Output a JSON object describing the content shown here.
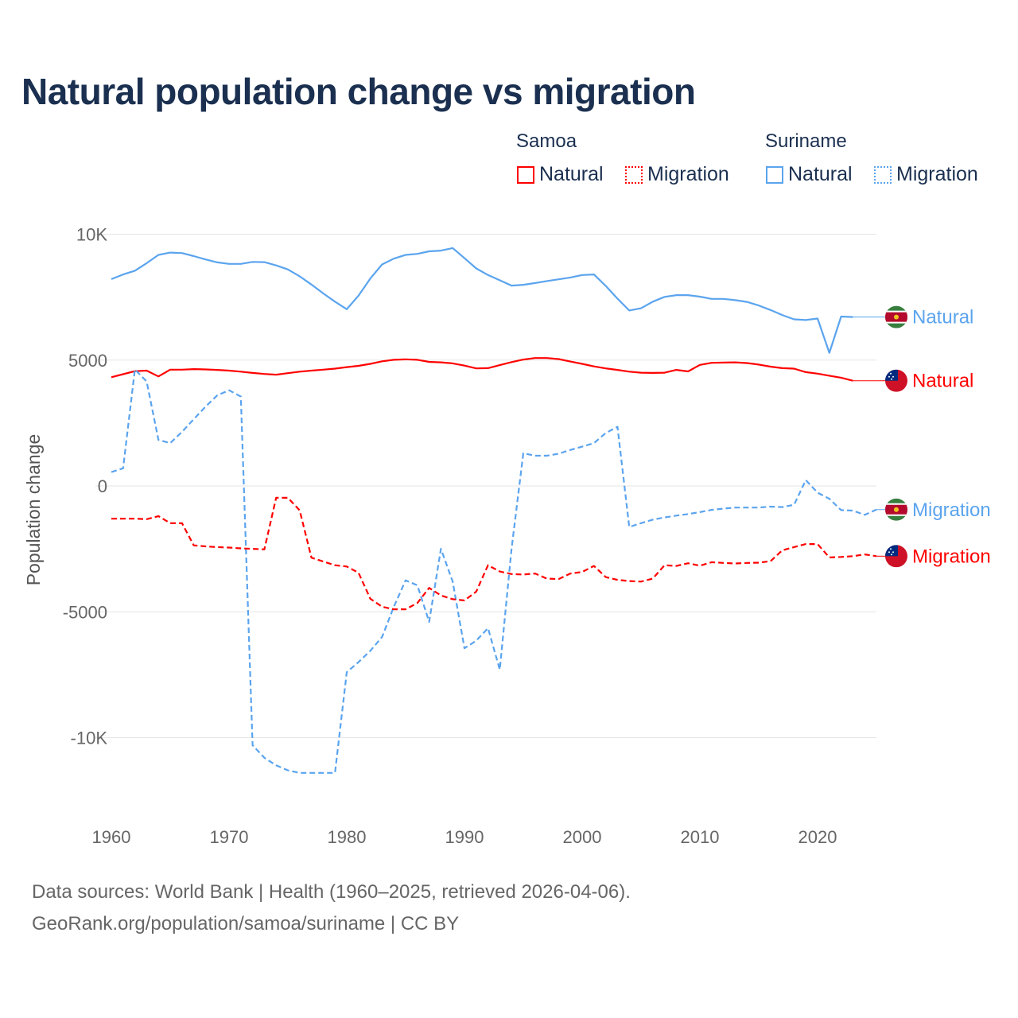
{
  "title": "Natural population change vs migration",
  "legend": {
    "groups": [
      {
        "name": "Samoa",
        "color": "#ff0000",
        "items": [
          "Natural",
          "Migration"
        ]
      },
      {
        "name": "Suriname",
        "color": "#5ba4ee",
        "items": [
          "Natural",
          "Migration"
        ]
      }
    ]
  },
  "footer": {
    "line1": "Data sources: World Bank | Health (1960–2025, retrieved 2026-04-06).",
    "line2": "GeoRank.org/population/samoa/suriname | CC BY"
  },
  "chart_data": {
    "type": "line",
    "title": "Natural population change vs migration",
    "xlabel": "",
    "ylabel": "Population change",
    "xlim": [
      1960,
      2025
    ],
    "ylim": [
      -12000,
      10000
    ],
    "x_ticks": [
      1960,
      1970,
      1980,
      1990,
      2000,
      2010,
      2020
    ],
    "y_ticks": [
      {
        "value": 10000,
        "label": "10K"
      },
      {
        "value": 5000,
        "label": "5000"
      },
      {
        "value": 0,
        "label": "0"
      },
      {
        "value": -5000,
        "label": "-5000"
      },
      {
        "value": -10000,
        "label": "-10K"
      }
    ],
    "grid": true,
    "legend_position": "top-right",
    "series": [
      {
        "name": "Suriname Natural",
        "label": "Natural",
        "country": "Suriname",
        "color": "#5ba4ee",
        "dash": false,
        "start": 1960,
        "values": [
          8215,
          8400,
          8550,
          8850,
          9180,
          9270,
          9250,
          9130,
          9000,
          8880,
          8820,
          8820,
          8900,
          8890,
          8760,
          8600,
          8330,
          8000,
          7650,
          7320,
          7020,
          7560,
          8240,
          8800,
          9030,
          9180,
          9220,
          9320,
          9350,
          9450,
          9050,
          8640,
          8380,
          8170,
          7960,
          7990,
          8060,
          8140,
          8210,
          8280,
          8380,
          8400,
          7950,
          7440,
          6970,
          7060,
          7320,
          7510,
          7580,
          7580,
          7520,
          7430,
          7430,
          7380,
          7310,
          7170,
          6990,
          6790,
          6620,
          6590,
          6650,
          5290,
          6730,
          6710
        ]
      },
      {
        "name": "Samoa Natural",
        "label": "Natural",
        "country": "Samoa",
        "color": "#ff0000",
        "dash": false,
        "start": 1960,
        "values": [
          4320,
          4440,
          4560,
          4580,
          4350,
          4620,
          4620,
          4640,
          4630,
          4610,
          4580,
          4540,
          4490,
          4450,
          4420,
          4480,
          4540,
          4580,
          4620,
          4660,
          4720,
          4770,
          4850,
          4950,
          5010,
          5030,
          5010,
          4930,
          4910,
          4870,
          4780,
          4670,
          4680,
          4800,
          4920,
          5020,
          5080,
          5080,
          5040,
          4940,
          4850,
          4750,
          4670,
          4610,
          4540,
          4500,
          4490,
          4500,
          4610,
          4550,
          4810,
          4890,
          4900,
          4910,
          4880,
          4820,
          4740,
          4680,
          4660,
          4520,
          4460,
          4380,
          4300,
          4180
        ]
      },
      {
        "name": "Suriname Migration",
        "label": "Migration",
        "country": "Suriname",
        "color": "#5ba4ee",
        "dash": true,
        "start": 1960,
        "values": [
          550,
          700,
          4630,
          4150,
          1830,
          1700,
          2150,
          2650,
          3150,
          3600,
          3800,
          3550,
          -10300,
          -10800,
          -11100,
          -11300,
          -11400,
          -11400,
          -11400,
          -11400,
          -7400,
          -7000,
          -6550,
          -6000,
          -4800,
          -3750,
          -3950,
          -5400,
          -2500,
          -3800,
          -6450,
          -6150,
          -5650,
          -7300,
          -2500,
          1300,
          1200,
          1200,
          1280,
          1430,
          1560,
          1700,
          2100,
          2350,
          -1630,
          -1480,
          -1340,
          -1250,
          -1180,
          -1120,
          -1040,
          -950,
          -900,
          -860,
          -860,
          -860,
          -820,
          -840,
          -750,
          230,
          -270,
          -510,
          -960,
          -980,
          -1150,
          -940
        ]
      },
      {
        "name": "Samoa Migration",
        "label": "Migration",
        "country": "Samoa",
        "color": "#ff0000",
        "dash": true,
        "start": 1960,
        "values": [
          -1300,
          -1300,
          -1300,
          -1320,
          -1200,
          -1480,
          -1480,
          -2360,
          -2400,
          -2430,
          -2450,
          -2480,
          -2500,
          -2520,
          -470,
          -470,
          -970,
          -2850,
          -3000,
          -3150,
          -3200,
          -3450,
          -4480,
          -4800,
          -4900,
          -4900,
          -4650,
          -4050,
          -4350,
          -4500,
          -4550,
          -4200,
          -3150,
          -3400,
          -3500,
          -3520,
          -3480,
          -3680,
          -3700,
          -3480,
          -3420,
          -3180,
          -3620,
          -3730,
          -3780,
          -3800,
          -3680,
          -3150,
          -3180,
          -3070,
          -3170,
          -3030,
          -3060,
          -3080,
          -3060,
          -3050,
          -2990,
          -2560,
          -2430,
          -2310,
          -2310,
          -2840,
          -2820,
          -2790,
          -2720,
          -2790
        ]
      }
    ]
  }
}
